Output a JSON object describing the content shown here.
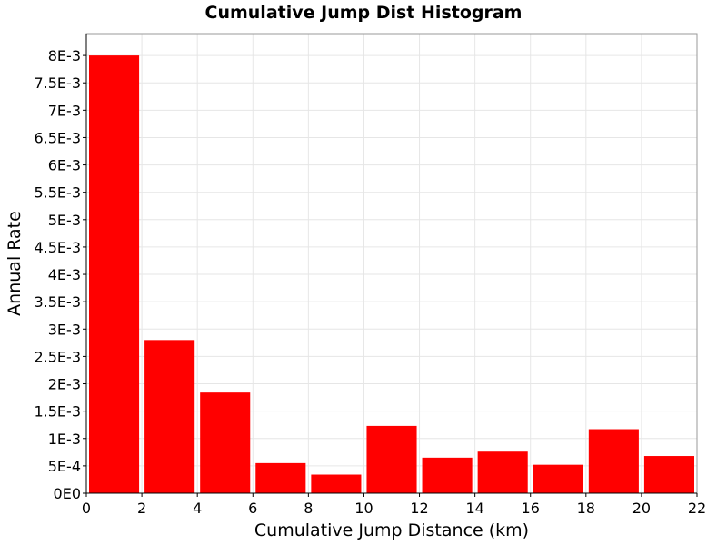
{
  "chart_data": {
    "type": "bar",
    "title": "Cumulative Jump Dist Histogram",
    "xlabel": "Cumulative Jump Distance (km)",
    "ylabel": "Annual Rate",
    "xlim": [
      0,
      22
    ],
    "ylim": [
      0,
      0.0084
    ],
    "x_ticks": [
      0,
      2,
      4,
      6,
      8,
      10,
      12,
      14,
      16,
      18,
      20,
      22
    ],
    "x_tick_labels": [
      "0",
      "2",
      "4",
      "6",
      "8",
      "10",
      "12",
      "14",
      "16",
      "18",
      "20",
      "22"
    ],
    "y_ticks": [
      0,
      0.0005,
      0.001,
      0.0015,
      0.002,
      0.0025,
      0.003,
      0.0035,
      0.004,
      0.0045,
      0.005,
      0.0055,
      0.006,
      0.0065,
      0.007,
      0.0075,
      0.008
    ],
    "y_tick_labels": [
      "0E0",
      "5E-4",
      "1E-3",
      "1.5E-3",
      "2E-3",
      "2.5E-3",
      "3E-3",
      "3.5E-3",
      "4E-3",
      "4.5E-3",
      "5E-3",
      "5.5E-3",
      "6E-3",
      "6.5E-3",
      "7E-3",
      "7.5E-3",
      "8E-3"
    ],
    "grid": true,
    "bar_color": "#ff0000",
    "bins": [
      {
        "x0": 0,
        "x1": 2,
        "value": 0.008
      },
      {
        "x0": 2,
        "x1": 4,
        "value": 0.0028
      },
      {
        "x0": 4,
        "x1": 6,
        "value": 0.00184
      },
      {
        "x0": 6,
        "x1": 8,
        "value": 0.00055
      },
      {
        "x0": 8,
        "x1": 10,
        "value": 0.00034
      },
      {
        "x0": 10,
        "x1": 12,
        "value": 0.00123
      },
      {
        "x0": 12,
        "x1": 14,
        "value": 0.00065
      },
      {
        "x0": 14,
        "x1": 16,
        "value": 0.00076
      },
      {
        "x0": 16,
        "x1": 18,
        "value": 0.00052
      },
      {
        "x0": 18,
        "x1": 20,
        "value": 0.00117
      },
      {
        "x0": 20,
        "x1": 22,
        "value": 0.00068
      }
    ]
  }
}
